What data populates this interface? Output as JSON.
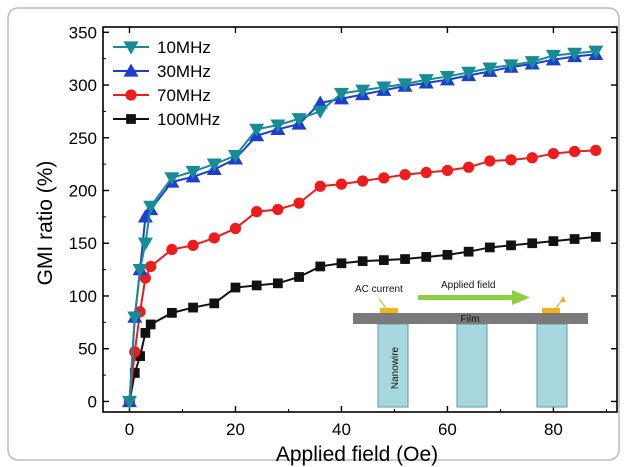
{
  "chart_data": {
    "type": "line",
    "xlabel": "Applied field (Oe)",
    "ylabel": "GMI ratio (%)",
    "xlim": [
      -5,
      92
    ],
    "ylim": [
      -10,
      355
    ],
    "xticks": [
      0,
      20,
      40,
      60,
      80
    ],
    "yticks": [
      0,
      50,
      100,
      150,
      200,
      250,
      300,
      350
    ],
    "grid": false,
    "legend_position": "top-left",
    "series": [
      {
        "name": "10MHz",
        "color": "#178b96",
        "marker": "triangle-down",
        "x": [
          0,
          1,
          2,
          3,
          4,
          8,
          12,
          16,
          20,
          24,
          28,
          32,
          36,
          40,
          44,
          48,
          52,
          56,
          60,
          64,
          68,
          72,
          76,
          80,
          84,
          88
        ],
        "values": [
          0,
          80,
          125,
          150,
          185,
          212,
          218,
          225,
          233,
          258,
          262,
          268,
          275,
          292,
          295,
          298,
          301,
          305,
          308,
          312,
          316,
          319,
          322,
          328,
          330,
          332
        ]
      },
      {
        "name": "30MHz",
        "color": "#1c3fd0",
        "marker": "triangle-up",
        "x": [
          0,
          1,
          2,
          3,
          4,
          8,
          12,
          16,
          20,
          24,
          28,
          32,
          36,
          40,
          44,
          48,
          52,
          56,
          60,
          64,
          68,
          72,
          76,
          80,
          84,
          88
        ],
        "values": [
          0,
          80,
          125,
          175,
          182,
          208,
          213,
          220,
          230,
          252,
          258,
          263,
          283,
          287,
          291,
          295,
          299,
          302,
          305,
          309,
          313,
          317,
          320,
          324,
          327,
          329
        ]
      },
      {
        "name": "70MHz",
        "color": "#ee1c1c",
        "marker": "circle",
        "x": [
          0,
          1,
          2,
          3,
          4,
          8,
          12,
          16,
          20,
          24,
          28,
          32,
          36,
          40,
          44,
          48,
          52,
          56,
          60,
          64,
          68,
          72,
          76,
          80,
          84,
          88
        ],
        "values": [
          0,
          47,
          85,
          117,
          128,
          144,
          148,
          155,
          164,
          180,
          182,
          188,
          204,
          206,
          209,
          212,
          215,
          217,
          219,
          222,
          228,
          229,
          231,
          235,
          237,
          238
        ]
      },
      {
        "name": "100MHz",
        "color": "#111111",
        "marker": "square",
        "x": [
          0,
          1,
          2,
          3,
          4,
          8,
          12,
          16,
          20,
          24,
          28,
          32,
          36,
          40,
          44,
          48,
          52,
          56,
          60,
          64,
          68,
          72,
          76,
          80,
          84,
          88
        ],
        "values": [
          0,
          27,
          43,
          65,
          73,
          84,
          89,
          93,
          108,
          110,
          112,
          118,
          128,
          131,
          133,
          134,
          135,
          137,
          139,
          142,
          146,
          148,
          150,
          152,
          154,
          156
        ]
      }
    ],
    "inset": {
      "ac_current_label": "AC current",
      "applied_field_label": "Applied field",
      "film_label": "Film",
      "nanowire_label": "Nanowire",
      "colors": {
        "film": "#7a7a7a",
        "nanowire": "#a6d8de",
        "arrow": "#8dcf3f",
        "contact": "#f2b31c"
      }
    }
  }
}
